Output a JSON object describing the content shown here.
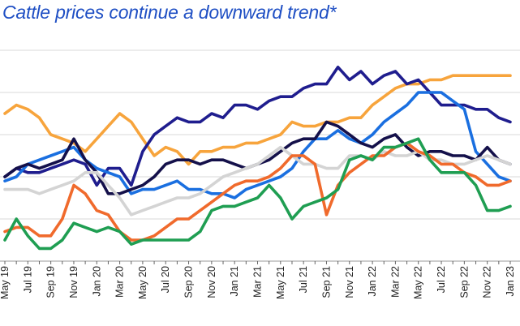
{
  "chart_data": {
    "type": "line",
    "title": "Cattle prices continue a downward trend*",
    "xlabel": "",
    "ylabel": "",
    "grid": true,
    "legend": "none",
    "x": [
      "May 19",
      "Jun 19",
      "Jul 19",
      "Aug 19",
      "Sep 19",
      "Oct 19",
      "Nov 19",
      "Dec 19",
      "Jan 20",
      "Feb 20",
      "Mar 20",
      "Apr 20",
      "May 20",
      "Jun 20",
      "Jul 20",
      "Aug 20",
      "Sep 20",
      "Oct 20",
      "Nov 20",
      "Dec 20",
      "Jan 21",
      "Feb 21",
      "Mar 21",
      "Apr 21",
      "May 21",
      "Jun 21",
      "Jul 21",
      "Aug 21",
      "Sep 21",
      "Oct 21",
      "Nov 21",
      "Dec 21",
      "Jan 22",
      "Feb 22",
      "Mar 22",
      "Apr 22",
      "May 22",
      "Jun 22",
      "Jul 22",
      "Aug 22",
      "Sep 22",
      "Oct 22",
      "Nov 22",
      "Dec 22",
      "Jan 23"
    ],
    "tick_labels": [
      "May 19",
      "Jul 19",
      "Sep 19",
      "Nov 19",
      "Jan 20",
      "Mar 20",
      "May 20",
      "Jul 20",
      "Sep 20",
      "Nov 20",
      "Jan 21",
      "Mar 21",
      "May 21",
      "Jul 21",
      "Sep 21",
      "Nov 21",
      "Jan 22",
      "Mar 22",
      "May 22",
      "Jul 22",
      "Sep 22",
      "Nov 22",
      "Jan 23"
    ],
    "ylim": [
      0,
      5
    ],
    "series": [
      {
        "color": "#f7a43c",
        "values": [
          3.5,
          3.7,
          3.6,
          3.4,
          3.0,
          2.9,
          2.8,
          2.6,
          2.9,
          3.2,
          3.5,
          3.3,
          2.9,
          2.5,
          2.7,
          2.6,
          2.3,
          2.6,
          2.6,
          2.7,
          2.7,
          2.8,
          2.8,
          2.9,
          3.0,
          3.3,
          3.2,
          3.2,
          3.3,
          3.3,
          3.4,
          3.4,
          3.7,
          3.9,
          4.1,
          4.2,
          4.2,
          4.3,
          4.3,
          4.4,
          4.4,
          4.4,
          4.4,
          4.4,
          4.4
        ]
      },
      {
        "color": "#1f1d8e",
        "values": [
          2.0,
          2.2,
          2.1,
          2.1,
          2.2,
          2.3,
          2.4,
          2.3,
          1.8,
          2.2,
          2.2,
          1.8,
          2.6,
          3.0,
          3.2,
          3.4,
          3.3,
          3.3,
          3.5,
          3.4,
          3.7,
          3.7,
          3.6,
          3.8,
          3.9,
          3.9,
          4.1,
          4.2,
          4.2,
          4.6,
          4.3,
          4.5,
          4.2,
          4.4,
          4.5,
          4.2,
          4.3,
          4.0,
          3.7,
          3.7,
          3.7,
          3.6,
          3.6,
          3.4,
          3.3
        ]
      },
      {
        "color": "#1a6fe0",
        "values": [
          1.9,
          2.0,
          2.3,
          2.4,
          2.5,
          2.6,
          2.7,
          2.4,
          2.2,
          2.1,
          2.0,
          1.6,
          1.7,
          1.7,
          1.8,
          1.9,
          1.7,
          1.7,
          1.6,
          1.6,
          1.5,
          1.7,
          1.8,
          1.9,
          2.0,
          2.2,
          2.6,
          2.9,
          2.9,
          3.1,
          2.9,
          2.8,
          3.0,
          3.3,
          3.5,
          3.7,
          4.0,
          4.0,
          4.0,
          3.8,
          3.6,
          2.6,
          2.3,
          2.0,
          1.9
        ]
      },
      {
        "color": "#14104a",
        "values": [
          2.0,
          2.2,
          2.3,
          2.2,
          2.3,
          2.4,
          2.9,
          2.4,
          2.1,
          1.6,
          1.6,
          1.7,
          1.8,
          2.0,
          2.3,
          2.4,
          2.4,
          2.3,
          2.4,
          2.4,
          2.3,
          2.2,
          2.3,
          2.4,
          2.6,
          2.8,
          2.9,
          2.9,
          3.3,
          3.2,
          3.0,
          2.8,
          2.7,
          2.9,
          3.0,
          2.7,
          2.5,
          2.6,
          2.6,
          2.5,
          2.5,
          2.4,
          2.7,
          2.4,
          2.3
        ]
      },
      {
        "color": "#d4d4d4",
        "values": [
          1.7,
          1.7,
          1.7,
          1.6,
          1.7,
          1.8,
          1.9,
          2.1,
          2.1,
          1.8,
          1.5,
          1.1,
          1.2,
          1.3,
          1.4,
          1.5,
          1.5,
          1.6,
          1.8,
          2.0,
          2.1,
          2.2,
          2.3,
          2.5,
          2.7,
          2.5,
          2.3,
          2.3,
          2.2,
          2.2,
          2.5,
          2.5,
          2.4,
          2.6,
          2.5,
          2.5,
          2.6,
          2.4,
          2.4,
          2.3,
          2.3,
          2.4,
          2.5,
          2.4,
          2.3
        ]
      },
      {
        "color": "#f06a2c",
        "values": [
          0.7,
          0.8,
          0.8,
          0.6,
          0.6,
          1.0,
          1.8,
          1.6,
          1.2,
          1.1,
          0.7,
          0.5,
          0.5,
          0.6,
          0.8,
          1.0,
          1.0,
          1.2,
          1.4,
          1.6,
          1.8,
          1.9,
          1.9,
          2.0,
          2.2,
          2.5,
          2.5,
          2.3,
          1.1,
          1.8,
          2.1,
          2.3,
          2.5,
          2.5,
          2.7,
          2.8,
          2.6,
          2.5,
          2.3,
          2.3,
          2.1,
          2.0,
          1.8,
          1.8,
          1.9
        ]
      },
      {
        "color": "#1f9e52",
        "values": [
          0.5,
          1.0,
          0.6,
          0.3,
          0.3,
          0.5,
          0.9,
          0.8,
          0.7,
          0.8,
          0.7,
          0.4,
          0.5,
          0.5,
          0.5,
          0.5,
          0.5,
          0.7,
          1.2,
          1.3,
          1.3,
          1.4,
          1.5,
          1.8,
          1.5,
          1.0,
          1.3,
          1.4,
          1.5,
          1.7,
          2.4,
          2.5,
          2.4,
          2.7,
          2.7,
          2.8,
          2.9,
          2.4,
          2.1,
          2.1,
          2.1,
          1.8,
          1.2,
          1.2,
          1.3
        ]
      }
    ]
  }
}
